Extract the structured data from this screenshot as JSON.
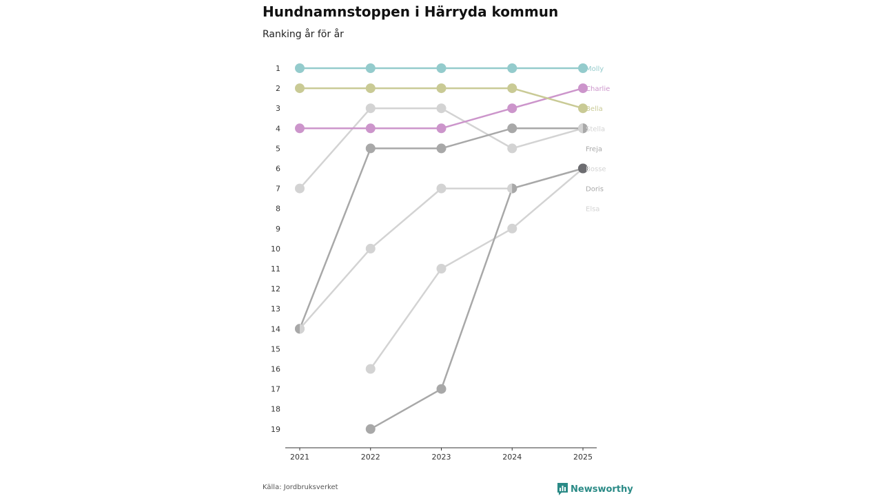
{
  "header": {
    "title": "Hundnamnstoppen i Härryda kommun",
    "subtitle": "Ranking år för år"
  },
  "footer": {
    "source": "Källa: Jordbruksverket",
    "brand": "Newsworthy",
    "brand_icon": "newsworthy-logo-icon"
  },
  "colors": {
    "teal": "#94cbcc",
    "olive": "#c9ca95",
    "purple": "#cc95cb",
    "light_gray": "#d3d3d3",
    "mid_gray": "#a8a8a8",
    "dark_gray": "#6c6c70",
    "axis": "#333333",
    "tick_text": "#333333"
  },
  "chart_data": {
    "type": "line",
    "subtype": "bump",
    "title": "Hundnamnstoppen i Härryda kommun",
    "subtitle": "Ranking år för år",
    "xlabel": "",
    "ylabel": "",
    "x": [
      "2021",
      "2022",
      "2023",
      "2024",
      "2025"
    ],
    "y_ticks": [
      "1",
      "2",
      "3",
      "4",
      "5",
      "6",
      "7",
      "8",
      "9",
      "10",
      "11",
      "12",
      "13",
      "14",
      "15",
      "16",
      "17",
      "18",
      "19"
    ],
    "ylim": [
      1,
      19
    ],
    "y_inverted": true,
    "grid": false,
    "series": [
      {
        "name": "Elsa",
        "color": "#d3d3d3",
        "values": [
          null,
          16,
          11,
          9,
          6
        ]
      },
      {
        "name": "Doris",
        "color": "#d3d3d3",
        "values": [
          14,
          10,
          7,
          7,
          6
        ]
      },
      {
        "name": "Stella",
        "color": "#d3d3d3",
        "values": [
          7,
          3,
          3,
          5,
          4
        ]
      },
      {
        "name": "Bosse",
        "color": "#a8a8a8",
        "values": [
          null,
          19,
          17,
          7,
          6
        ]
      },
      {
        "name": "Freja",
        "color": "#a8a8a8",
        "values": [
          14,
          5,
          5,
          4,
          4
        ]
      },
      {
        "name": "Charlie",
        "color": "#cc95cb",
        "values": [
          4,
          4,
          4,
          3,
          2
        ]
      },
      {
        "name": "Bella",
        "color": "#c9ca95",
        "values": [
          2,
          2,
          2,
          2,
          3
        ]
      },
      {
        "name": "Molly",
        "color": "#94cbcc",
        "values": [
          1,
          1,
          1,
          1,
          1
        ]
      }
    ],
    "end_labels": [
      {
        "name": "Molly",
        "rank": 1,
        "color": "#94cbcc"
      },
      {
        "name": "Charlie",
        "rank": 2,
        "color": "#cc95cb"
      },
      {
        "name": "Bella",
        "rank": 3,
        "color": "#c9ca95"
      },
      {
        "name": "Stella",
        "rank": 4,
        "color": "#d3d3d3"
      },
      {
        "name": "Freja",
        "rank": 5,
        "color": "#a8a8a8"
      },
      {
        "name": "Bosse",
        "rank": 6,
        "color": "#d3d3d3"
      },
      {
        "name": "Doris",
        "rank": 7,
        "color": "#a8a8a8"
      },
      {
        "name": "Elsa",
        "rank": 8,
        "color": "#d3d3d3"
      }
    ],
    "shared_markers": [
      {
        "x": "2021",
        "rank": 14,
        "left_color": "#a8a8a8",
        "right_color": "#d3d3d3"
      },
      {
        "x": "2024",
        "rank": 7,
        "left_color": "#d3d3d3",
        "right_color": "#a8a8a8"
      },
      {
        "x": "2025",
        "rank": 4,
        "left_color": "#d3d3d3",
        "right_color": "#a8a8a8"
      },
      {
        "x": "2025",
        "rank": 6,
        "left_color": "#6c6c70",
        "right_color": "#6c6c70"
      }
    ]
  }
}
